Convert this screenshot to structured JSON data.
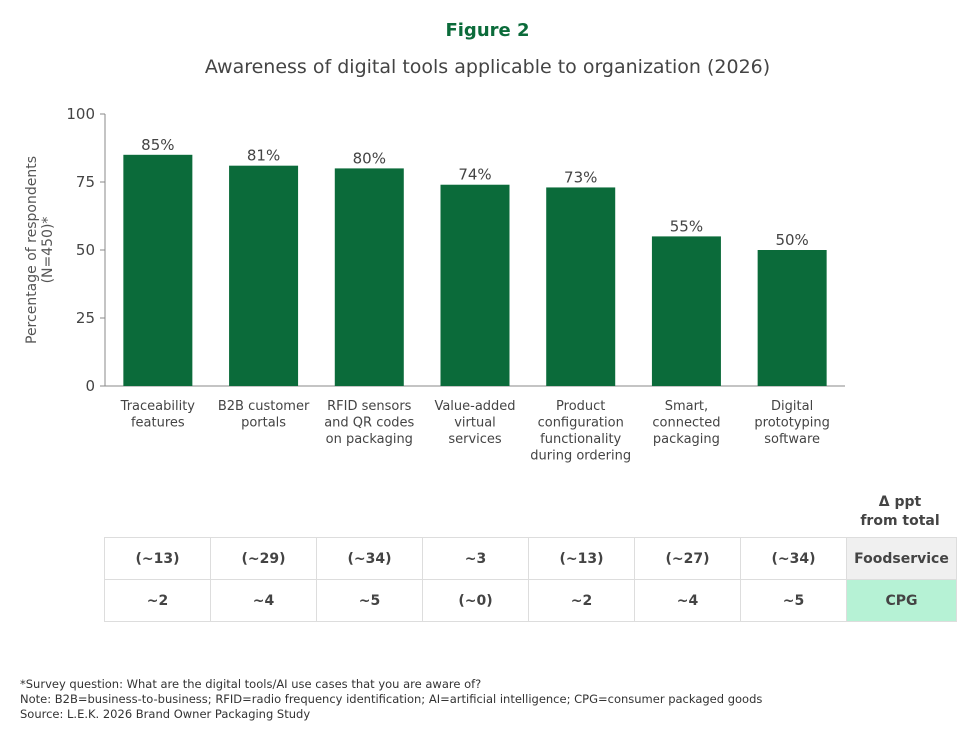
{
  "figure_label": "Figure 2",
  "chart_data": {
    "type": "bar",
    "title": "Awareness of digital tools applicable to organization (2026)",
    "ylabel": "Percentage of respondents (N=450)*",
    "ylabel_lines": [
      "Percentage of respondents",
      "(N=450)*"
    ],
    "ylim": [
      0,
      100
    ],
    "yticks": [
      0,
      25,
      50,
      75,
      100
    ],
    "grid": false,
    "bar_color": "#0b6b3a",
    "categories": [
      [
        "Traceability",
        "features"
      ],
      [
        "B2B customer",
        "portals"
      ],
      [
        "RFID sensors",
        "and QR codes",
        "on packaging"
      ],
      [
        "Value-added",
        "virtual",
        "services"
      ],
      [
        "Product",
        "configuration",
        "functionality",
        "during ordering"
      ],
      [
        "Smart,",
        "connected",
        "packaging"
      ],
      [
        "Digital",
        "prototyping",
        "software"
      ]
    ],
    "values": [
      85,
      81,
      80,
      74,
      73,
      55,
      50
    ],
    "data_labels": [
      "85%",
      "81%",
      "80%",
      "74%",
      "73%",
      "55%",
      "50%"
    ]
  },
  "table": {
    "header": [
      "Δ ppt",
      "from total"
    ],
    "rows": [
      {
        "label": "Foodservice",
        "color": "#f0f0f0",
        "values": [
          "(~13)",
          "(~29)",
          "(~34)",
          "~3",
          "(~13)",
          "(~27)",
          "(~34)"
        ]
      },
      {
        "label": "CPG",
        "color": "#b6f2d5",
        "values": [
          "~2",
          "~4",
          "~5",
          "(~0)",
          "~2",
          "~4",
          "~5"
        ]
      }
    ]
  },
  "footnotes": [
    "*Survey question: What are the digital tools/AI use cases that you are aware of?",
    "Note: B2B=business-to-business; RFID=radio frequency identification; AI=artificial intelligence; CPG=consumer packaged goods",
    "Source: L.E.K. 2026 Brand Owner Packaging Study"
  ]
}
